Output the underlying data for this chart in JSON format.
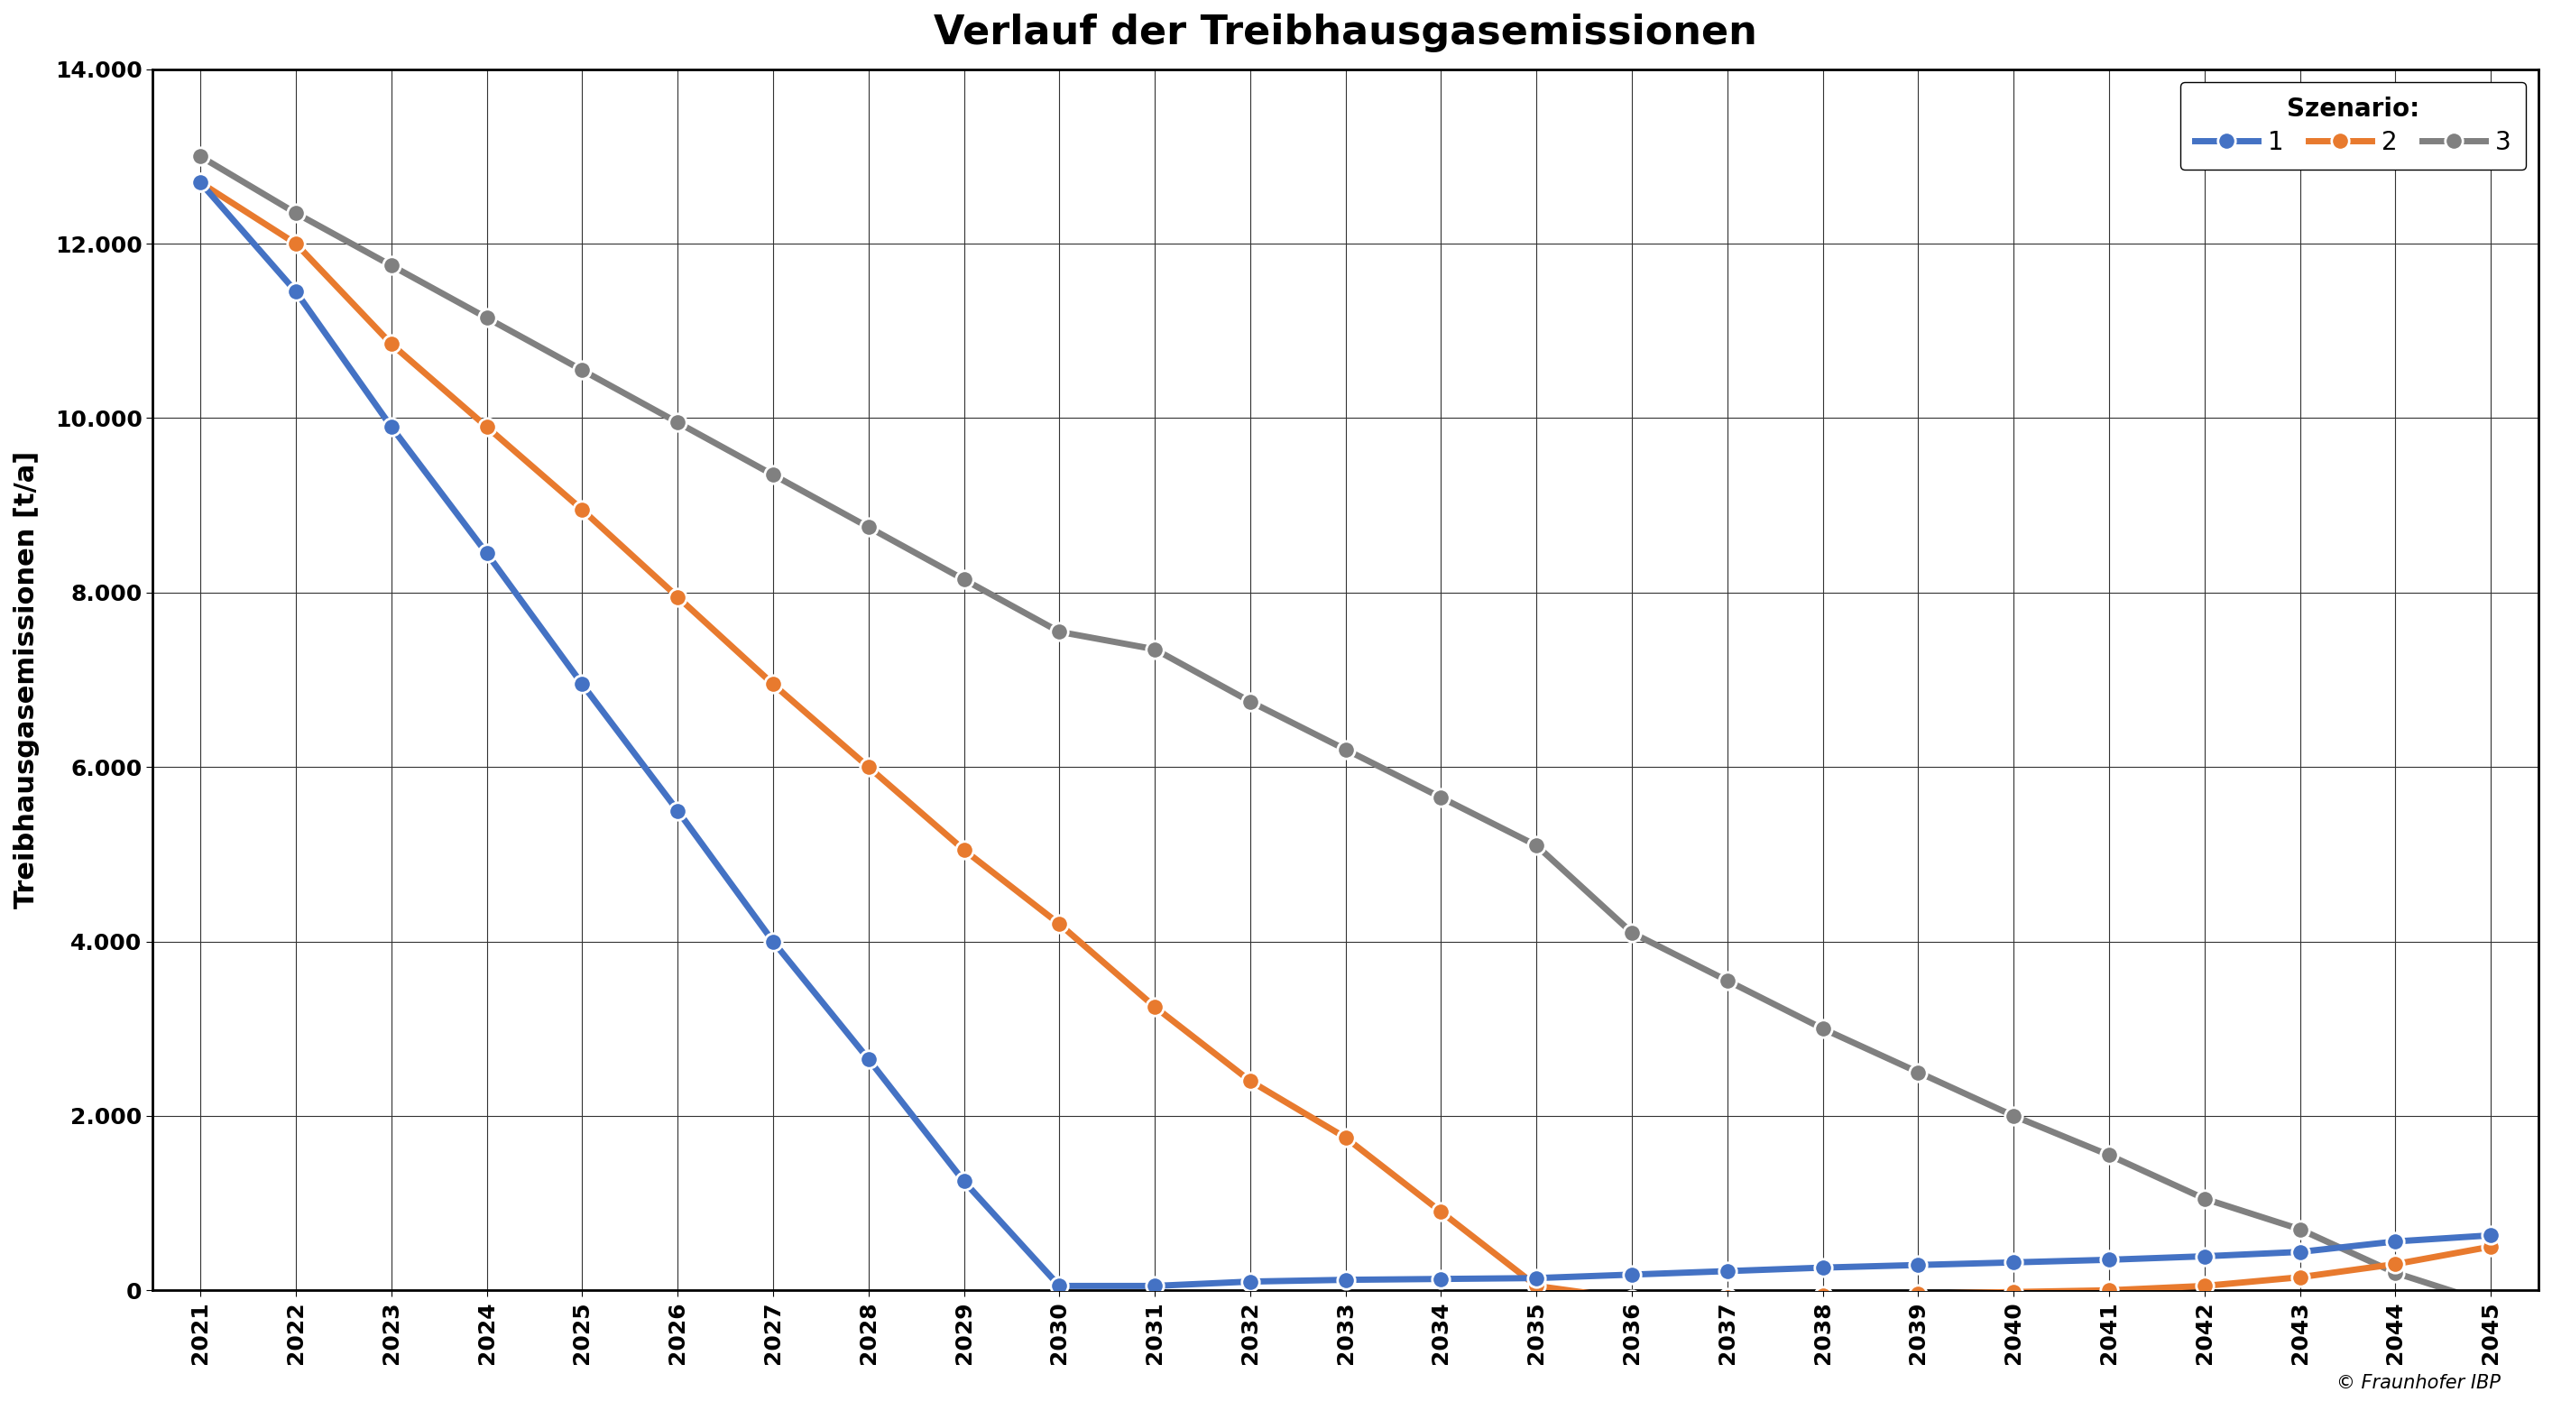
{
  "title": "Verlauf der Treibhausgasemissionen",
  "ylabel": "Treibhausgasemissionen [t/a]",
  "years": [
    2021,
    2022,
    2023,
    2024,
    2025,
    2026,
    2027,
    2028,
    2029,
    2030,
    2031,
    2032,
    2033,
    2034,
    2035,
    2036,
    2037,
    2038,
    2039,
    2040,
    2041,
    2042,
    2043,
    2044,
    2045
  ],
  "scenario1": [
    12700,
    11450,
    9900,
    8450,
    6950,
    5500,
    4000,
    2650,
    1250,
    50,
    50,
    100,
    120,
    130,
    140,
    180,
    220,
    260,
    290,
    320,
    350,
    390,
    440,
    560,
    630
  ],
  "scenario2": [
    12700,
    12000,
    10850,
    9900,
    8950,
    7950,
    6950,
    6000,
    5050,
    4200,
    3250,
    2400,
    1750,
    900,
    50,
    -100,
    -80,
    -60,
    -40,
    -20,
    0,
    50,
    150,
    300,
    500
  ],
  "scenario3": [
    13000,
    12350,
    11750,
    11150,
    10550,
    9950,
    9350,
    8750,
    8150,
    7550,
    7350,
    6750,
    6200,
    5650,
    5100,
    4100,
    3550,
    3000,
    2500,
    2000,
    1550,
    1050,
    700,
    200,
    -150
  ],
  "color1": "#4472C4",
  "color2": "#E87A2E",
  "color3": "#808080",
  "ylim_min": 0,
  "ylim_max": 14000,
  "yticks": [
    0,
    2000,
    4000,
    6000,
    8000,
    10000,
    12000,
    14000
  ],
  "background_color": "#FFFFFF",
  "legend_label1": "1",
  "legend_label2": "2",
  "legend_label3": "3",
  "legend_prefix": "Szenario:",
  "copyright": "© Fraunhofer IBP",
  "title_fontsize": 32,
  "label_fontsize": 22,
  "tick_fontsize": 18,
  "legend_fontsize": 20,
  "linewidth": 5.0,
  "markersize": 14
}
